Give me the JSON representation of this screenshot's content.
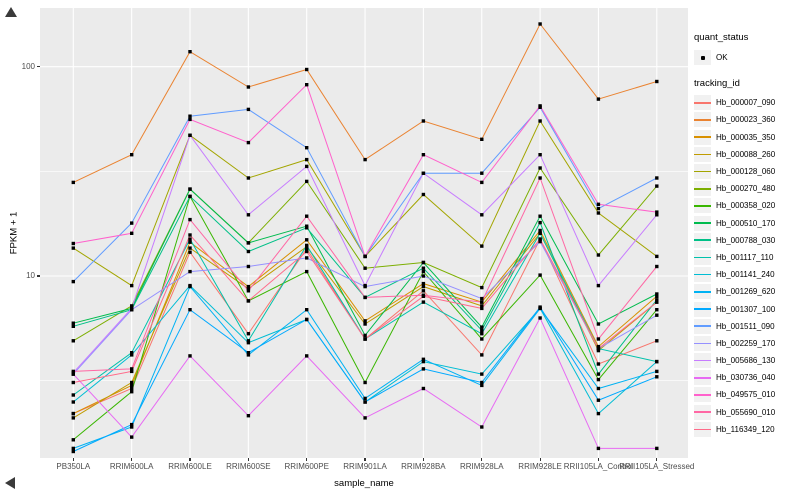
{
  "chart_data": {
    "type": "line",
    "title": "",
    "xlabel": "sample_name",
    "ylabel": "FPKM + 1",
    "y_scale": "log10",
    "grid": true,
    "panel_bg": "#EBEBEB",
    "grid_color": "#FFFFFF",
    "point_color": "#000000",
    "y_ticks": [
      {
        "label": "100",
        "value": 100
      },
      {
        "label": "10",
        "value": 10
      }
    ],
    "y_minor_ticks": [
      31.62,
      3.162
    ],
    "ylim": [
      1.35,
      190
    ],
    "categories": [
      "PB350LA",
      "RRIM600LA",
      "RRIM600LE",
      "RRIM600SE",
      "RRIM600PE",
      "RRIM901LA",
      "RRIM928BA",
      "RRIM928LA",
      "RRIM928LE",
      "RRII105LA_Control",
      "RRII105LA_Stressed"
    ],
    "legend_position": "right",
    "legend": {
      "quant_status_title": "quant_status",
      "quant_status_items": [
        "OK"
      ],
      "tracking_title": "tracking_id"
    },
    "series": [
      {
        "name": "Hb_000007_090",
        "color": "#F8766D",
        "values": [
          2.2,
          2.9,
          13.0,
          5.3,
          13.5,
          5.0,
          8.5,
          4.2,
          15.0,
          3.8,
          4.9
        ]
      },
      {
        "name": "Hb_000023_360",
        "color": "#EA8331",
        "values": [
          28,
          38,
          118,
          80,
          97,
          36,
          55,
          45,
          160,
          70,
          85
        ]
      },
      {
        "name": "Hb_000035_350",
        "color": "#D89000",
        "values": [
          2.2,
          3.0,
          14.5,
          8.9,
          14.9,
          6.1,
          9.2,
          7.5,
          16.5,
          4.6,
          8.0
        ]
      },
      {
        "name": "Hb_000088_260",
        "color": "#C09B00",
        "values": [
          2.1,
          3.1,
          13.6,
          8.7,
          13.8,
          5.9,
          8.9,
          7.2,
          16.0,
          4.4,
          7.5
        ]
      },
      {
        "name": "Hb_000128_060",
        "color": "#A3A500",
        "values": [
          13.6,
          9.0,
          47,
          29.4,
          36,
          12.4,
          24.5,
          13.9,
          55,
          20,
          12.4
        ]
      },
      {
        "name": "Hb_000270_480",
        "color": "#7CAE00",
        "values": [
          4.9,
          7.2,
          26,
          14.4,
          28.3,
          10.9,
          11.6,
          8.8,
          32.8,
          12.6,
          26.9
        ]
      },
      {
        "name": "Hb_000358_020",
        "color": "#39B600",
        "values": [
          1.65,
          2.8,
          24,
          7.6,
          10.5,
          3.1,
          10.5,
          5.0,
          10.1,
          3.2,
          6.9
        ]
      },
      {
        "name": "Hb_000510_170",
        "color": "#00BB4E",
        "values": [
          5.95,
          7.0,
          26,
          14.4,
          17.3,
          5.2,
          11.6,
          5.7,
          19.3,
          5.9,
          8.2
        ]
      },
      {
        "name": "Hb_000788_030",
        "color": "#00C087",
        "values": [
          5.75,
          6.9,
          24,
          13.1,
          17.0,
          7.9,
          10.9,
          5.5,
          18.0,
          3.4,
          7.7
        ]
      },
      {
        "name": "Hb_001117_110",
        "color": "#00C1AB",
        "values": [
          2.7,
          4.3,
          15.0,
          4.9,
          14.0,
          5.0,
          7.5,
          5.3,
          16.0,
          4.5,
          3.9
        ]
      },
      {
        "name": "Hb_001141_240",
        "color": "#00BDD4",
        "values": [
          2.5,
          4.2,
          9.0,
          4.8,
          6.2,
          2.5,
          3.9,
          3.4,
          7.0,
          2.2,
          3.9
        ]
      },
      {
        "name": "Hb_001269_620",
        "color": "#00B2F3",
        "values": [
          1.5,
          1.9,
          8.9,
          4.2,
          6.9,
          2.6,
          4.0,
          3.0,
          7.0,
          2.9,
          3.5
        ]
      },
      {
        "name": "Hb_001307_100",
        "color": "#00A9FF",
        "values": [
          1.45,
          1.95,
          6.9,
          4.3,
          6.2,
          2.5,
          3.6,
          3.1,
          7.1,
          2.55,
          3.3
        ]
      },
      {
        "name": "Hb_001511_090",
        "color": "#619CFF",
        "values": [
          9.4,
          17.9,
          58,
          62.5,
          41,
          12.4,
          31,
          31,
          64,
          21,
          29.4
        ]
      },
      {
        "name": "Hb_002259_170",
        "color": "#9590FF",
        "values": [
          3.4,
          6.9,
          10.5,
          11.1,
          12.2,
          8.9,
          10.0,
          7.8,
          14.6,
          4.5,
          6.5
        ]
      },
      {
        "name": "Hb_005686_130",
        "color": "#C77CFF",
        "values": [
          3.45,
          7.0,
          47,
          19.6,
          33.4,
          9.0,
          31,
          19.6,
          38,
          9.0,
          19.6
        ]
      },
      {
        "name": "Hb_030736_040",
        "color": "#E76BF3",
        "values": [
          3.4,
          1.7,
          4.15,
          2.15,
          4.15,
          2.1,
          2.9,
          1.9,
          6.3,
          1.5,
          1.5
        ]
      },
      {
        "name": "Hb_049575_010",
        "color": "#FF61CC",
        "values": [
          14.3,
          16.0,
          56,
          43.4,
          82,
          12.4,
          38,
          28,
          65,
          22,
          20.2
        ]
      },
      {
        "name": "Hb_055690_010",
        "color": "#FF67A4",
        "values": [
          3.5,
          3.6,
          18.6,
          8.5,
          19.3,
          7.9,
          8.1,
          7.5,
          29.4,
          5.0,
          11.1
        ]
      },
      {
        "name": "Hb_116349_120",
        "color": "#FF6B8A",
        "values": [
          3.1,
          3.5,
          15.7,
          7.6,
          13.1,
          5.0,
          8.0,
          7.0,
          15.0,
          4.5,
          7.5
        ]
      }
    ]
  }
}
